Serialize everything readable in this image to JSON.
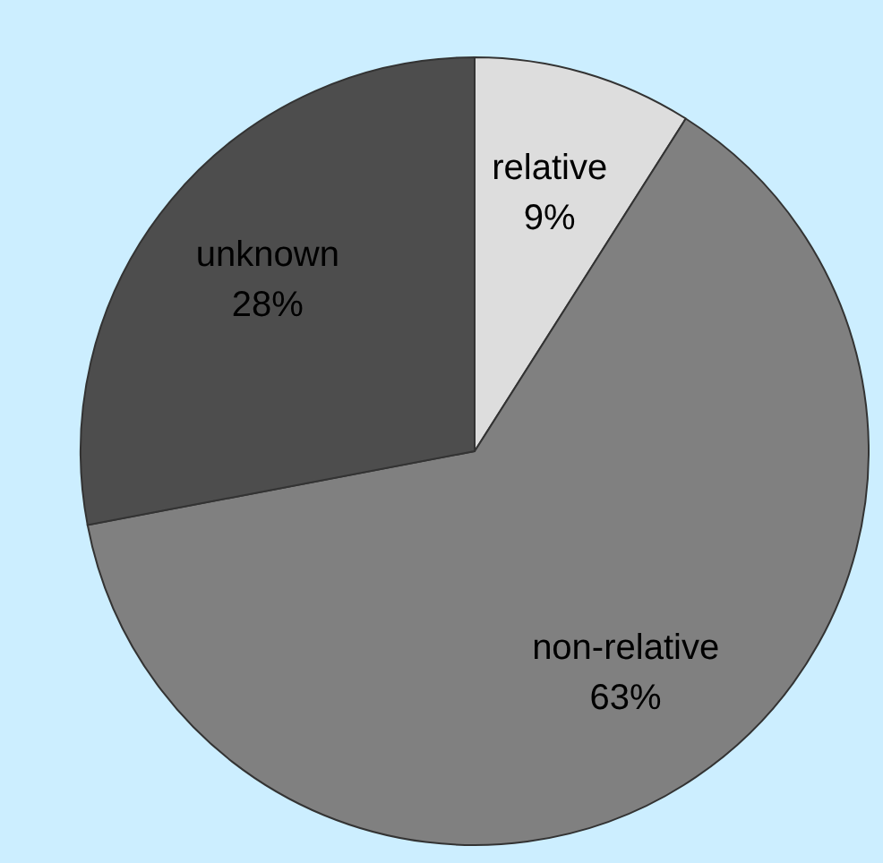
{
  "chart_data": {
    "type": "pie",
    "categories": [
      "relative",
      "non-relative",
      "unknown"
    ],
    "values": [
      9,
      63,
      28
    ],
    "colors": [
      "#dddddd",
      "#808080",
      "#4d4d4d"
    ],
    "value_labels": [
      "9%",
      "63%",
      "28%"
    ],
    "legend": false
  }
}
